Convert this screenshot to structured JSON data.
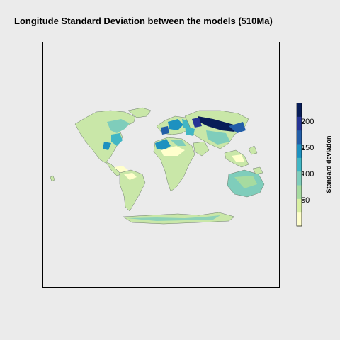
{
  "title": "Longitude Standard Deviation between the models (510Ma)",
  "legend": {
    "title": "Standard deviation",
    "ticks": [
      {
        "label": "50",
        "value": 50
      },
      {
        "label": "100",
        "value": 100
      },
      {
        "label": "150",
        "value": 150
      },
      {
        "label": "200",
        "value": 200
      }
    ],
    "range": [
      2,
      237
    ],
    "colors": [
      "#ffffcc",
      "#d9f0a3",
      "#a6dba0",
      "#7fcdbb",
      "#41b6c4",
      "#1d91c0",
      "#225ea8",
      "#253494",
      "#081d58"
    ]
  }
}
